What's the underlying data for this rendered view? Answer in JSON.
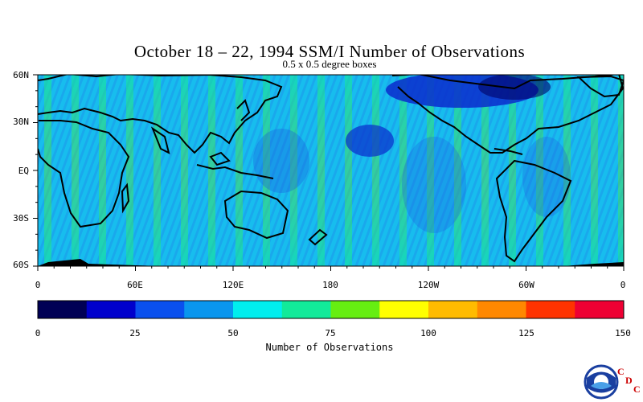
{
  "title": "October 18 – 22, 1994 SSM/I Number of Observations",
  "subtitle": "0.5 x 0.5 degree boxes",
  "lat_labels": [
    "60N",
    "30N",
    "EQ",
    "30S",
    "60S"
  ],
  "lon_labels": [
    "0",
    "60E",
    "120E",
    "180",
    "120W",
    "60W",
    "0"
  ],
  "colorbar": {
    "ticks": [
      "0",
      "25",
      "50",
      "75",
      "100",
      "125",
      "150"
    ],
    "label": "Number of Observations",
    "colors": [
      "#000055",
      "#0000cc",
      "#0a50ee",
      "#0a96ee",
      "#00eeee",
      "#12ea9a",
      "#66ee11",
      "#ffff00",
      "#ffbb00",
      "#ff8800",
      "#ff3300",
      "#ee0033"
    ]
  },
  "logo": {
    "name": "noaa-logo",
    "text": "NOAA",
    "cdc": [
      "C",
      "D",
      "C"
    ]
  },
  "map": {
    "land_color": "#000000",
    "ocean_color": "#19c8ee",
    "lat_range": [
      -60,
      60
    ],
    "lon_range": [
      0,
      360
    ]
  }
}
